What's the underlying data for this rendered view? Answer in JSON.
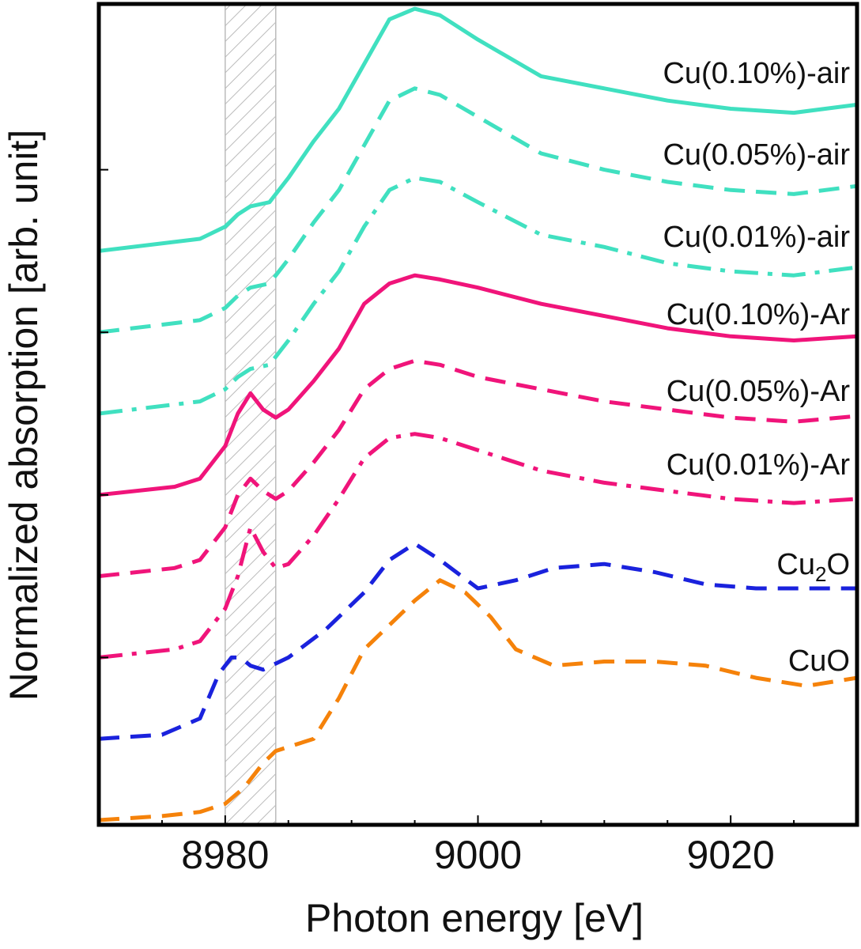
{
  "chart_data": {
    "type": "line",
    "title": "",
    "xlabel": "Photon energy [eV]",
    "ylabel": "Normalized absorption [arb. unit]",
    "xlim": [
      8970,
      9030
    ],
    "ylim": [
      0,
      10
    ],
    "xticks": [
      8980,
      9000,
      9020
    ],
    "yticks_unlabeled": [
      2,
      4,
      6,
      8
    ],
    "shaded_region": {
      "x": [
        8980,
        8984
      ],
      "fill": "hatched",
      "color": "#bbbbbb"
    },
    "colors": {
      "air": "#40e0c0",
      "ar": "#f0147a",
      "cu2o": "#1a22dd",
      "cuo": "#f5820a"
    },
    "series": [
      {
        "name": "Cu(0.10%)-air",
        "label": "Cu(0.10%)-air",
        "color": "#40e0c0",
        "dash": "solid",
        "x": [
          8970,
          8978,
          8980,
          8981,
          8982,
          8983.5,
          8985,
          8987,
          8989,
          8991,
          8993,
          8995,
          8997,
          9000,
          9005,
          9010,
          9015,
          9020,
          9025,
          9030
        ],
        "y": [
          7.0,
          7.15,
          7.3,
          7.45,
          7.55,
          7.6,
          7.9,
          8.35,
          8.75,
          9.3,
          9.85,
          9.98,
          9.9,
          9.6,
          9.15,
          9.0,
          8.85,
          8.75,
          8.7,
          8.8
        ]
      },
      {
        "name": "Cu(0.05%)-air",
        "label": "Cu(0.05%)-air",
        "color": "#40e0c0",
        "dash": "dashed",
        "x": [
          8970,
          8978,
          8980,
          8981,
          8982,
          8983.5,
          8985,
          8987,
          8989,
          8991,
          8993,
          8995,
          8997,
          9000,
          9005,
          9010,
          9015,
          9020,
          9025,
          9030
        ],
        "y": [
          6.0,
          6.15,
          6.3,
          6.45,
          6.55,
          6.6,
          6.9,
          7.35,
          7.75,
          8.3,
          8.85,
          9.0,
          8.92,
          8.65,
          8.2,
          8.0,
          7.85,
          7.75,
          7.7,
          7.8
        ]
      },
      {
        "name": "Cu(0.01%)-air",
        "label": "Cu(0.01%)-air",
        "color": "#40e0c0",
        "dash": "dashdot",
        "x": [
          8970,
          8978,
          8980,
          8981,
          8982,
          8983.5,
          8985,
          8987,
          8989,
          8991,
          8993,
          8995,
          8997,
          9000,
          9005,
          9010,
          9015,
          9020,
          9025,
          9030
        ],
        "y": [
          5.0,
          5.15,
          5.3,
          5.45,
          5.55,
          5.6,
          5.9,
          6.35,
          6.75,
          7.3,
          7.75,
          7.9,
          7.85,
          7.6,
          7.2,
          7.05,
          6.85,
          6.75,
          6.7,
          6.8
        ]
      },
      {
        "name": "Cu(0.10%)-Ar",
        "label": "Cu(0.10%)-Ar",
        "color": "#f0147a",
        "dash": "solid",
        "x": [
          8970,
          8976,
          8978,
          8980,
          8981,
          8982,
          8983,
          8984,
          8985,
          8987,
          8989,
          8991,
          8993,
          8995,
          8997,
          9000,
          9005,
          9010,
          9015,
          9020,
          9025,
          9030
        ],
        "y": [
          4.0,
          4.1,
          4.2,
          4.6,
          5.0,
          5.25,
          5.05,
          4.95,
          5.05,
          5.4,
          5.8,
          6.35,
          6.6,
          6.7,
          6.65,
          6.55,
          6.35,
          6.2,
          6.05,
          5.95,
          5.9,
          5.95
        ]
      },
      {
        "name": "Cu(0.05%)-Ar",
        "label": "Cu(0.05%)-Ar",
        "color": "#f0147a",
        "dash": "dashed",
        "x": [
          8970,
          8976,
          8978,
          8980,
          8981,
          8982,
          8983,
          8984,
          8985,
          8987,
          8989,
          8991,
          8993,
          8995,
          8997,
          9000,
          9005,
          9010,
          9015,
          9020,
          9025,
          9030
        ],
        "y": [
          3.0,
          3.1,
          3.2,
          3.6,
          4.0,
          4.2,
          4.05,
          3.95,
          4.05,
          4.4,
          4.8,
          5.3,
          5.55,
          5.65,
          5.6,
          5.45,
          5.3,
          5.15,
          5.05,
          4.95,
          4.9,
          4.97
        ]
      },
      {
        "name": "Cu(0.01%)-Ar",
        "label": "Cu(0.01%)-Ar",
        "color": "#f0147a",
        "dash": "dashdot",
        "x": [
          8970,
          8976,
          8978,
          8980,
          8981,
          8982,
          8983,
          8984,
          8985,
          8987,
          8989,
          8991,
          8993,
          8995,
          8997,
          9000,
          9005,
          9010,
          9015,
          9020,
          9025,
          9030
        ],
        "y": [
          2.0,
          2.1,
          2.2,
          2.6,
          3.0,
          3.6,
          3.3,
          3.1,
          3.15,
          3.5,
          3.95,
          4.45,
          4.7,
          4.75,
          4.7,
          4.55,
          4.3,
          4.15,
          4.05,
          3.95,
          3.9,
          3.95
        ]
      },
      {
        "name": "Cu2O",
        "label": "Cu",
        "label_sub": "2",
        "label_tail": "O",
        "color": "#1a22dd",
        "dash": "dashed",
        "x": [
          8970,
          8975,
          8978,
          8979.5,
          8980.5,
          8981.2,
          8982,
          8983,
          8985,
          8988,
          8991,
          8993,
          8995,
          8997,
          9000,
          9003,
          9006,
          9010,
          9014,
          9018,
          9022,
          9026,
          9030
        ],
        "y": [
          1.0,
          1.05,
          1.25,
          1.8,
          2.0,
          2.0,
          1.9,
          1.85,
          2.0,
          2.35,
          2.8,
          3.2,
          3.4,
          3.2,
          2.85,
          2.95,
          3.1,
          3.15,
          3.05,
          2.9,
          2.85,
          2.85,
          2.85
        ]
      },
      {
        "name": "CuO",
        "label": "CuO",
        "color": "#f5820a",
        "dash": "dashed",
        "x": [
          8970,
          8975,
          8978,
          8980,
          8981.5,
          8983,
          8984,
          8985,
          8987,
          8989,
          8991,
          8993,
          8995,
          8997,
          8999,
          9001,
          9003,
          9006,
          9010,
          9014,
          9018,
          9022,
          9026,
          9030
        ],
        "y": [
          0.0,
          0.05,
          0.1,
          0.2,
          0.4,
          0.7,
          0.85,
          0.9,
          1.0,
          1.5,
          2.1,
          2.4,
          2.7,
          2.95,
          2.8,
          2.5,
          2.1,
          1.9,
          1.95,
          1.95,
          1.9,
          1.75,
          1.65,
          1.75
        ]
      }
    ]
  }
}
